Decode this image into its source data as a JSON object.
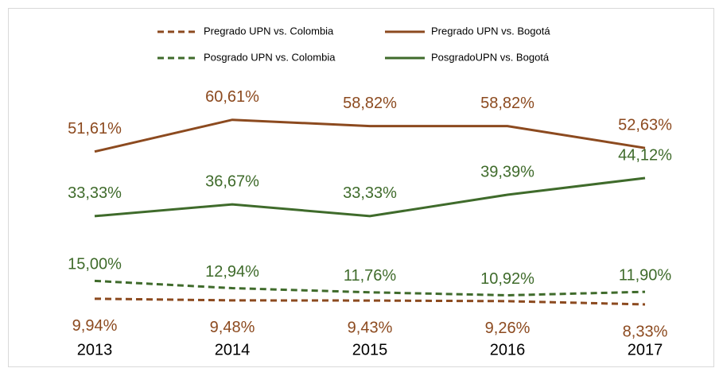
{
  "chart_data": {
    "type": "line",
    "categories": [
      "2013",
      "2014",
      "2015",
      "2016",
      "2017"
    ],
    "ylim": [
      0,
      70
    ],
    "series": [
      {
        "name": "Pregrado UPN vs. Colombia",
        "color": "#8c4a1f",
        "line_style": "dashed",
        "values": [
          9.94,
          9.48,
          9.43,
          9.26,
          8.33
        ],
        "value_labels": [
          "9,94%",
          "9,48%",
          "9,43%",
          "9,26%",
          "8,33%"
        ]
      },
      {
        "name": "Pregrado UPN vs. Bogotá",
        "color": "#8c4a1f",
        "line_style": "solid",
        "values": [
          51.61,
          60.61,
          58.82,
          58.82,
          52.63
        ],
        "value_labels": [
          "51,61%",
          "60,61%",
          "58,82%",
          "58,82%",
          "52,63%"
        ]
      },
      {
        "name": "Posgrado UPN vs. Colombia",
        "color": "#3f6b2b",
        "line_style": "dashed",
        "values": [
          15.0,
          12.94,
          11.76,
          10.92,
          11.9
        ],
        "value_labels": [
          "15,00%",
          "12,94%",
          "11,76%",
          "10,92%",
          "11,90%"
        ]
      },
      {
        "name": "PosgradoUPN vs. Bogotá",
        "color": "#3f6b2b",
        "line_style": "solid",
        "values": [
          33.33,
          36.67,
          33.33,
          39.39,
          44.12
        ],
        "value_labels": [
          "33,33%",
          "36,67%",
          "33,33%",
          "39,39%",
          "44,12%"
        ]
      }
    ]
  }
}
